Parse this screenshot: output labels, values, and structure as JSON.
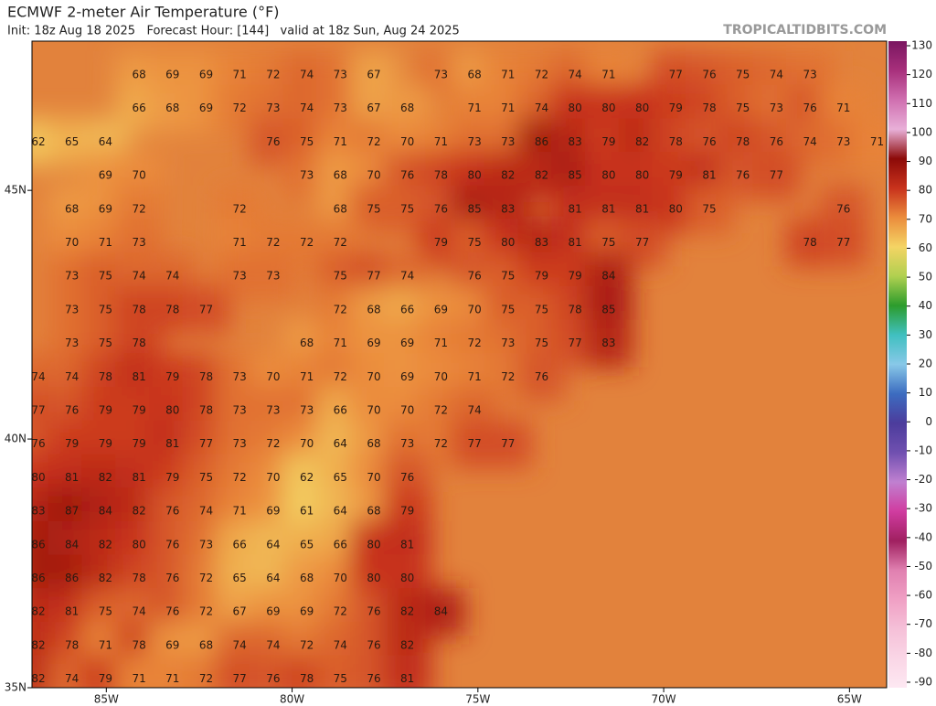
{
  "header": {
    "title": "ECMWF 2-meter Air Temperature (°F)",
    "subtitle": "Init: 18z Aug 18 2025   Forecast Hour: [144]   valid at 18z Sun, Aug 24 2025",
    "watermark": "TROPICALTIDBITS.COM"
  },
  "map": {
    "lonlim": [
      -87,
      -64
    ],
    "latlim": [
      35,
      48
    ],
    "lon_ticks": [
      {
        "value": -85,
        "label": "85W"
      },
      {
        "value": -80,
        "label": "80W"
      },
      {
        "value": -75,
        "label": "75W"
      },
      {
        "value": -70,
        "label": "70W"
      },
      {
        "value": -65,
        "label": "65W"
      }
    ],
    "lat_ticks": [
      {
        "value": 45,
        "label": "45N"
      },
      {
        "value": 40,
        "label": "40N"
      },
      {
        "value": 35,
        "label": "35N"
      }
    ],
    "station_rows": [
      [
        null,
        null,
        null,
        68,
        69,
        69,
        71,
        72,
        74,
        73,
        67,
        null,
        73,
        68,
        71,
        72,
        74,
        71,
        null,
        77,
        76,
        75,
        74,
        73,
        null,
        null
      ],
      [
        null,
        null,
        null,
        66,
        68,
        69,
        72,
        73,
        74,
        73,
        67,
        68,
        null,
        71,
        71,
        74,
        80,
        80,
        80,
        79,
        78,
        75,
        73,
        76,
        71,
        null
      ],
      [
        62,
        65,
        64,
        null,
        null,
        null,
        null,
        76,
        75,
        71,
        72,
        70,
        71,
        73,
        73,
        86,
        83,
        79,
        82,
        78,
        76,
        78,
        76,
        74,
        73,
        71
      ],
      [
        null,
        null,
        69,
        70,
        null,
        null,
        null,
        null,
        73,
        68,
        70,
        76,
        78,
        80,
        82,
        82,
        85,
        80,
        80,
        79,
        81,
        76,
        77,
        null,
        null,
        null
      ],
      [
        null,
        68,
        69,
        72,
        null,
        null,
        72,
        null,
        null,
        68,
        75,
        75,
        76,
        85,
        83,
        null,
        81,
        81,
        81,
        80,
        75,
        null,
        null,
        null,
        76,
        null
      ],
      [
        null,
        70,
        71,
        73,
        null,
        null,
        71,
        72,
        72,
        72,
        null,
        null,
        79,
        75,
        80,
        83,
        81,
        75,
        77,
        null,
        null,
        null,
        null,
        78,
        77,
        null
      ],
      [
        null,
        73,
        75,
        74,
        74,
        null,
        73,
        73,
        null,
        75,
        77,
        74,
        null,
        76,
        75,
        79,
        79,
        84,
        null,
        null,
        null,
        null,
        null,
        null,
        null,
        null
      ],
      [
        null,
        73,
        75,
        78,
        78,
        77,
        null,
        null,
        null,
        72,
        68,
        66,
        69,
        70,
        75,
        75,
        78,
        85,
        null,
        null,
        null,
        null,
        null,
        null,
        null,
        null
      ],
      [
        null,
        73,
        75,
        78,
        null,
        null,
        null,
        null,
        68,
        71,
        69,
        69,
        71,
        72,
        73,
        75,
        77,
        83,
        null,
        null,
        null,
        null,
        null,
        null,
        null,
        null
      ],
      [
        74,
        74,
        78,
        81,
        79,
        78,
        73,
        70,
        71,
        72,
        70,
        69,
        70,
        71,
        72,
        76,
        null,
        null,
        null,
        null,
        null,
        null,
        null,
        null,
        null,
        null
      ],
      [
        77,
        76,
        79,
        79,
        80,
        78,
        73,
        73,
        73,
        66,
        70,
        70,
        72,
        74,
        null,
        null,
        null,
        null,
        null,
        null,
        null,
        null,
        null,
        null,
        null,
        null
      ],
      [
        76,
        79,
        79,
        79,
        81,
        77,
        73,
        72,
        70,
        64,
        68,
        73,
        72,
        77,
        77,
        null,
        null,
        null,
        null,
        null,
        null,
        null,
        null,
        null,
        null,
        null
      ],
      [
        80,
        81,
        82,
        81,
        79,
        75,
        72,
        70,
        62,
        65,
        70,
        76,
        null,
        null,
        null,
        null,
        null,
        null,
        null,
        null,
        null,
        null,
        null,
        null,
        null,
        null
      ],
      [
        83,
        87,
        84,
        82,
        76,
        74,
        71,
        69,
        61,
        64,
        68,
        79,
        null,
        null,
        null,
        null,
        null,
        null,
        null,
        null,
        null,
        null,
        null,
        null,
        null,
        null
      ],
      [
        86,
        84,
        82,
        80,
        76,
        73,
        66,
        64,
        65,
        66,
        80,
        81,
        null,
        null,
        null,
        null,
        null,
        null,
        null,
        null,
        null,
        null,
        null,
        null,
        null,
        null
      ],
      [
        86,
        86,
        82,
        78,
        76,
        72,
        65,
        64,
        68,
        70,
        80,
        80,
        null,
        null,
        null,
        null,
        null,
        null,
        null,
        null,
        null,
        null,
        null,
        null,
        null,
        null
      ],
      [
        82,
        81,
        75,
        74,
        76,
        72,
        67,
        69,
        69,
        72,
        76,
        82,
        84,
        null,
        null,
        null,
        null,
        null,
        null,
        null,
        null,
        null,
        null,
        null,
        null,
        null
      ],
      [
        82,
        78,
        71,
        78,
        69,
        68,
        74,
        74,
        72,
        74,
        76,
        82,
        null,
        null,
        null,
        null,
        null,
        null,
        null,
        null,
        null,
        null,
        null,
        null,
        null,
        null
      ],
      [
        82,
        74,
        79,
        71,
        71,
        72,
        77,
        76,
        78,
        75,
        76,
        81,
        null,
        null,
        null,
        null,
        null,
        null,
        null,
        null,
        null,
        null,
        null,
        null,
        null,
        null
      ]
    ]
  },
  "colorbar": {
    "ticks": [
      130,
      120,
      110,
      100,
      90,
      80,
      70,
      60,
      50,
      40,
      30,
      20,
      10,
      0,
      -10,
      -20,
      -30,
      -40,
      -50,
      -60,
      -70,
      -80,
      -90
    ]
  }
}
